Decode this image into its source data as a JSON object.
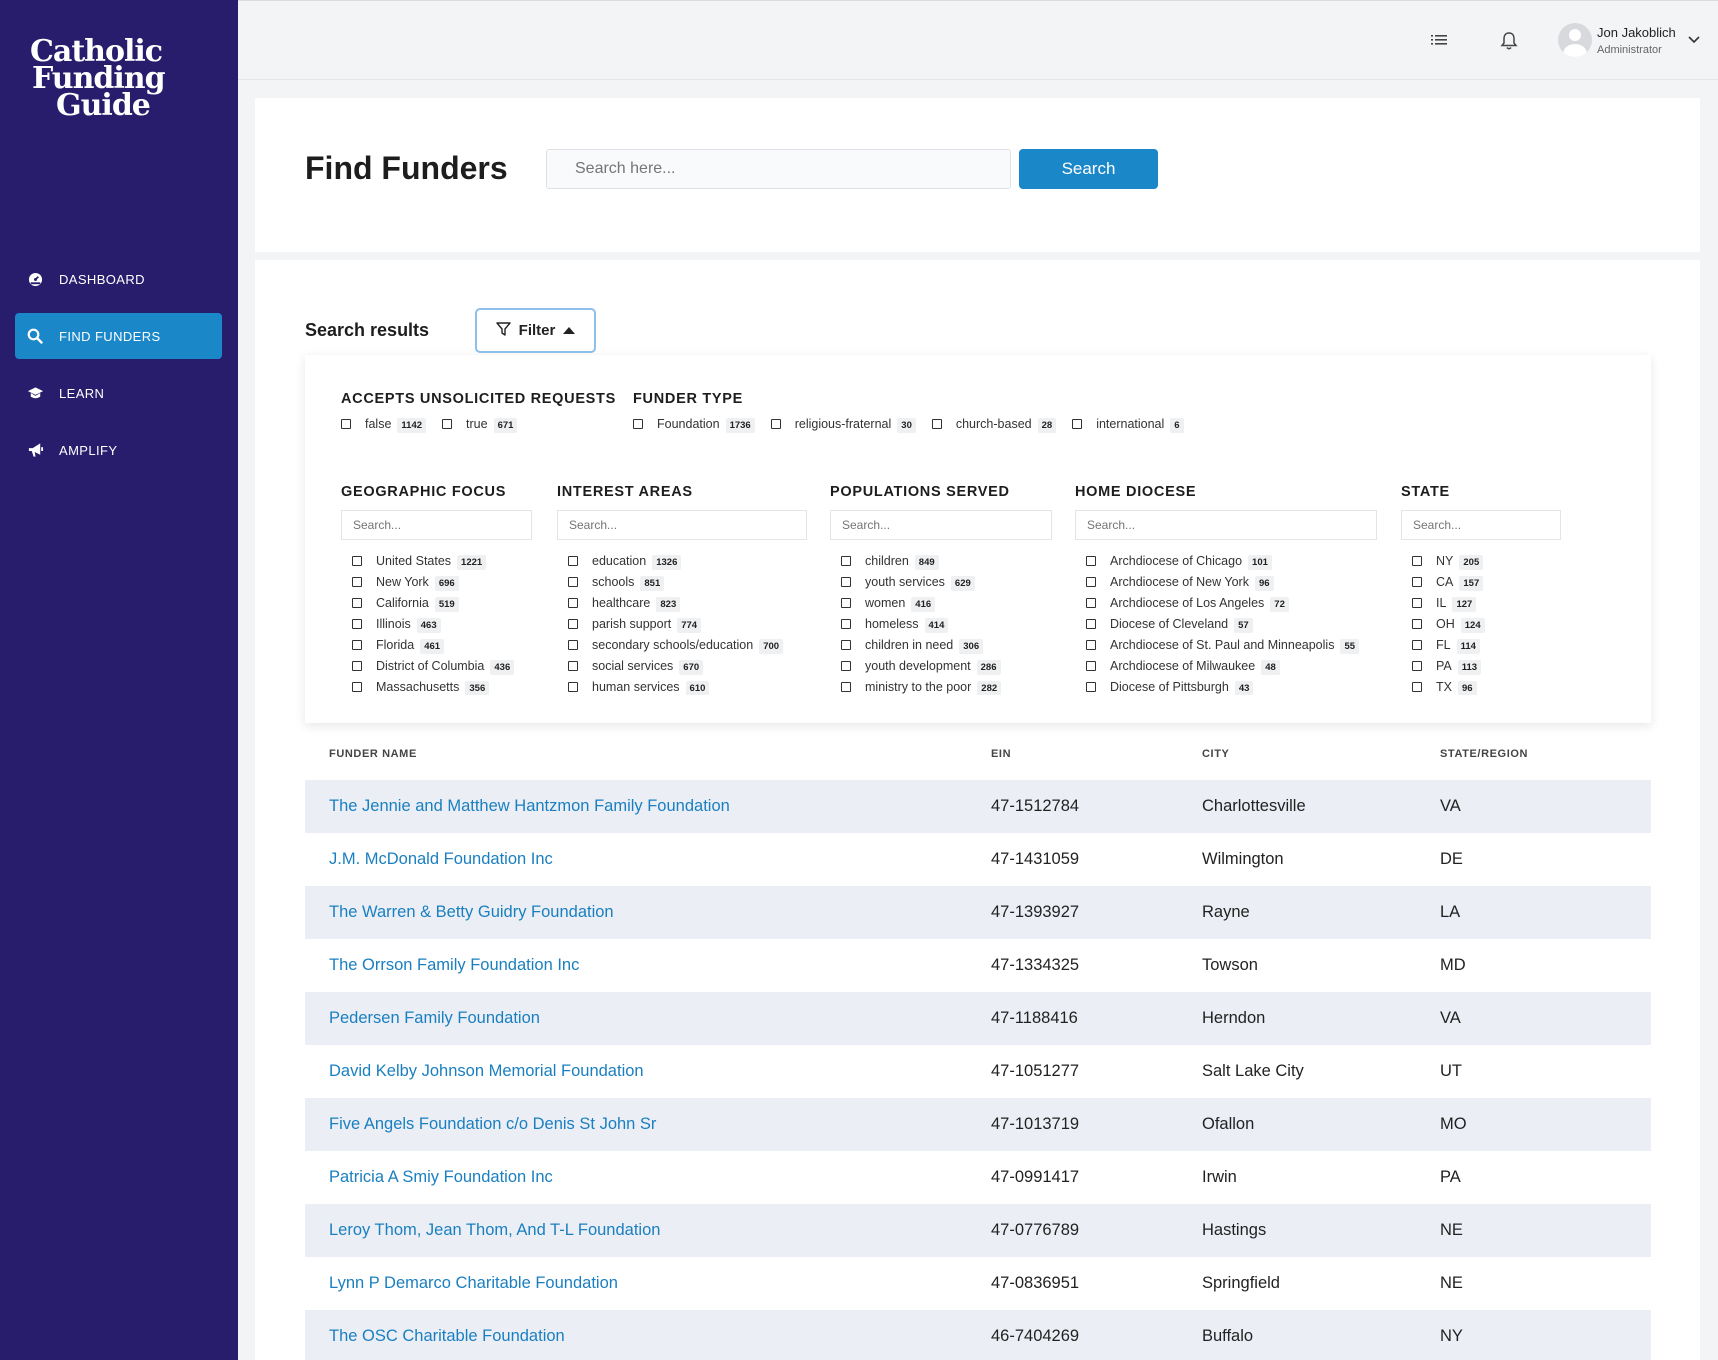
{
  "app": {
    "logo_lines": [
      "Catholic",
      "Funding",
      "Guide"
    ]
  },
  "sidebar": {
    "items": [
      {
        "label": "DASHBOARD",
        "icon": "dashboard-icon"
      },
      {
        "label": "FIND FUNDERS",
        "icon": "search-icon",
        "active": true
      },
      {
        "label": "LEARN",
        "icon": "graduation-cap-icon"
      },
      {
        "label": "AMPLIFY",
        "icon": "megaphone-icon"
      }
    ]
  },
  "topbar": {
    "user_name": "Jon Jakoblich",
    "user_role": "Administrator"
  },
  "header": {
    "title": "Find Funders",
    "search_placeholder": "Search here...",
    "search_button": "Search"
  },
  "results": {
    "label": "Search results",
    "filter_button": "Filter"
  },
  "filters": {
    "unsolicited": {
      "heading": "ACCEPTS UNSOLICITED REQUESTS",
      "options": [
        {
          "label": "false",
          "count": "1142"
        },
        {
          "label": "true",
          "count": "671"
        }
      ]
    },
    "funder_type": {
      "heading": "FUNDER TYPE",
      "options": [
        {
          "label": "Foundation",
          "count": "1736"
        },
        {
          "label": "religious-fraternal",
          "count": "30"
        },
        {
          "label": "church-based",
          "count": "28"
        },
        {
          "label": "international",
          "count": "6"
        }
      ]
    },
    "geographic": {
      "heading": "GEOGRAPHIC FOCUS",
      "placeholder": "Search...",
      "options": [
        {
          "label": "United States",
          "count": "1221"
        },
        {
          "label": "New York",
          "count": "696"
        },
        {
          "label": "California",
          "count": "519"
        },
        {
          "label": "Illinois",
          "count": "463"
        },
        {
          "label": "Florida",
          "count": "461"
        },
        {
          "label": "District of Columbia",
          "count": "436"
        },
        {
          "label": "Massachusetts",
          "count": "356"
        }
      ]
    },
    "interest": {
      "heading": "INTEREST AREAS",
      "placeholder": "Search...",
      "options": [
        {
          "label": "education",
          "count": "1326"
        },
        {
          "label": "schools",
          "count": "851"
        },
        {
          "label": "healthcare",
          "count": "823"
        },
        {
          "label": "parish support",
          "count": "774"
        },
        {
          "label": "secondary schools/education",
          "count": "700"
        },
        {
          "label": "social services",
          "count": "670"
        },
        {
          "label": "human services",
          "count": "610"
        }
      ]
    },
    "populations": {
      "heading": "POPULATIONS SERVED",
      "placeholder": "Search...",
      "options": [
        {
          "label": "children",
          "count": "849"
        },
        {
          "label": "youth services",
          "count": "629"
        },
        {
          "label": "women",
          "count": "416"
        },
        {
          "label": "homeless",
          "count": "414"
        },
        {
          "label": "children in need",
          "count": "306"
        },
        {
          "label": "youth development",
          "count": "286"
        },
        {
          "label": "ministry to the poor",
          "count": "282"
        }
      ]
    },
    "diocese": {
      "heading": "HOME DIOCESE",
      "placeholder": "Search...",
      "options": [
        {
          "label": "Archdiocese of Chicago",
          "count": "101"
        },
        {
          "label": "Archdiocese of New York",
          "count": "96"
        },
        {
          "label": "Archdiocese of Los Angeles",
          "count": "72"
        },
        {
          "label": "Diocese of Cleveland",
          "count": "57"
        },
        {
          "label": "Archdiocese of St. Paul and Minneapolis",
          "count": "55"
        },
        {
          "label": "Archdiocese of Milwaukee",
          "count": "48"
        },
        {
          "label": "Diocese of Pittsburgh",
          "count": "43"
        }
      ]
    },
    "state": {
      "heading": "STATE",
      "placeholder": "Search...",
      "options": [
        {
          "label": "NY",
          "count": "205"
        },
        {
          "label": "CA",
          "count": "157"
        },
        {
          "label": "IL",
          "count": "127"
        },
        {
          "label": "OH",
          "count": "124"
        },
        {
          "label": "FL",
          "count": "114"
        },
        {
          "label": "PA",
          "count": "113"
        },
        {
          "label": "TX",
          "count": "96"
        }
      ]
    }
  },
  "table": {
    "headers": [
      "FUNDER NAME",
      "EIN",
      "CITY",
      "STATE/REGION"
    ],
    "rows": [
      [
        "The Jennie and Matthew Hantzmon Family Foundation",
        "47-1512784",
        "Charlottesville",
        "VA"
      ],
      [
        "J.M. McDonald Foundation Inc",
        "47-1431059",
        "Wilmington",
        "DE"
      ],
      [
        "The Warren & Betty Guidry Foundation",
        "47-1393927",
        "Rayne",
        "LA"
      ],
      [
        "The Orrson Family Foundation Inc",
        "47-1334325",
        "Towson",
        "MD"
      ],
      [
        "Pedersen Family Foundation",
        "47-1188416",
        "Herndon",
        "VA"
      ],
      [
        "David Kelby Johnson Memorial Foundation",
        "47-1051277",
        "Salt Lake City",
        "UT"
      ],
      [
        "Five Angels Foundation c/o Denis St John Sr",
        "47-1013719",
        "Ofallon",
        "MO"
      ],
      [
        "Patricia A Smiy Foundation Inc",
        "47-0991417",
        "Irwin",
        "PA"
      ],
      [
        "Leroy Thom, Jean Thom, And T-L Foundation",
        "47-0776789",
        "Hastings",
        "NE"
      ],
      [
        "Lynn P Demarco Charitable Foundation",
        "47-0836951",
        "Springfield",
        "NE"
      ],
      [
        "The OSC Charitable Foundation",
        "46-7404269",
        "Buffalo",
        "NY"
      ]
    ]
  },
  "colors": {
    "sidebar_bg": "#271d6c",
    "accent": "#1a87c9",
    "link": "#1a7fc0",
    "row_alt": "#ebeff5"
  }
}
